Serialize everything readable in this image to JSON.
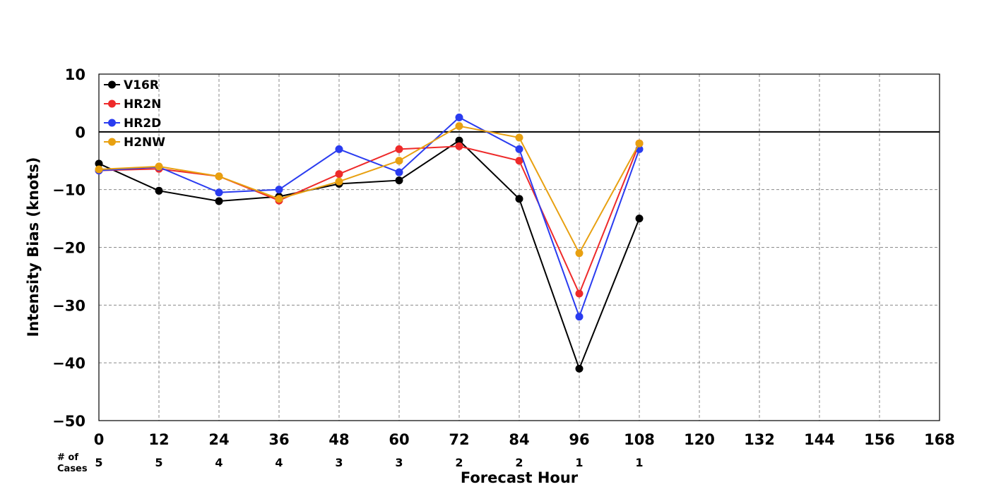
{
  "chart_data": {
    "type": "line",
    "xlabel": "Forecast Hour",
    "ylabel": "Intensity Bias (knots)",
    "xlim": [
      0,
      168
    ],
    "ylim": [
      -50,
      10
    ],
    "xticks": [
      0,
      12,
      24,
      36,
      48,
      60,
      72,
      84,
      96,
      108,
      120,
      132,
      144,
      156,
      168
    ],
    "yticks": [
      -50,
      -40,
      -30,
      -20,
      -10,
      0,
      10
    ],
    "grid": "dashed",
    "zero_line": true,
    "legend_position": "top-left",
    "x": [
      0,
      12,
      24,
      36,
      48,
      60,
      72,
      84,
      96,
      108
    ],
    "series": [
      {
        "name": "V16R",
        "color": "#000000",
        "values": [
          -5.5,
          -10.2,
          -12.0,
          -11.2,
          -9.0,
          -8.4,
          -1.5,
          -11.6,
          -41.0,
          -15.0
        ]
      },
      {
        "name": "HR2N",
        "color": "#ee2a2a",
        "values": [
          -6.7,
          -6.4,
          -7.7,
          -11.9,
          -7.3,
          -3.0,
          -2.5,
          -5.0,
          -28.0,
          -2.0
        ]
      },
      {
        "name": "HR2D",
        "color": "#2a3cf0",
        "values": [
          -6.7,
          -6.1,
          -10.5,
          -10.0,
          -3.0,
          -7.0,
          2.5,
          -3.0,
          -32.0,
          -3.0
        ]
      },
      {
        "name": "H2NW",
        "color": "#e8a010",
        "values": [
          -6.5,
          -6.0,
          -7.7,
          -11.6,
          -8.6,
          -5.0,
          1.0,
          -1.0,
          -21.0,
          -2.0
        ]
      }
    ],
    "cases": {
      "label_line1": "# of",
      "label_line2": "Cases",
      "x": [
        0,
        12,
        24,
        36,
        48,
        60,
        72,
        84,
        96,
        108
      ],
      "values": [
        5,
        5,
        4,
        4,
        3,
        3,
        2,
        2,
        1,
        1
      ]
    }
  }
}
